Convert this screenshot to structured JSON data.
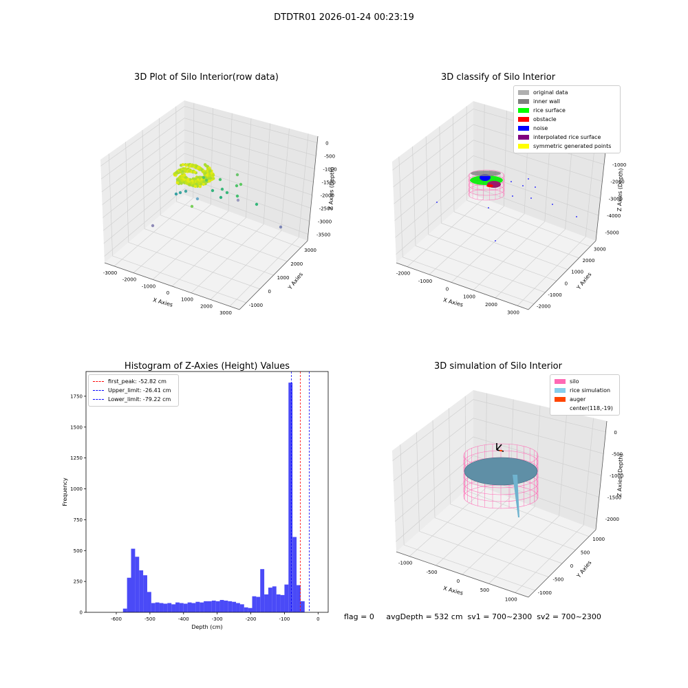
{
  "suptitle": "DTDTR01 2026-01-24 00:23:19",
  "status_line": "flag = 0     avgDepth = 532 cm  sv1 = 700~2300  sv2 = 700~2300",
  "chart_data": [
    {
      "type": "scatter",
      "projection": "3d",
      "title": "3D Plot of Silo Interior(row data)",
      "xlabel": "X Axies",
      "ylabel": "Y Axies",
      "zlabel": "Z Axies (Depth)",
      "xticks": [
        -3000,
        -2000,
        -1000,
        0,
        1000,
        2000,
        3000
      ],
      "yticks": [
        -1000,
        0,
        1000,
        2000,
        3000
      ],
      "zticks": [
        0,
        -500,
        -1000,
        -1500,
        -2000,
        -2500,
        -3000,
        -3500
      ],
      "grid": true,
      "colormap": "viridis"
    },
    {
      "type": "scatter",
      "projection": "3d",
      "title": "3D classify of Silo Interior",
      "xlabel": "X Axies",
      "ylabel": "Y Axies",
      "zlabel": "Z Axies (Depth)",
      "xticks": [
        -2000,
        -1000,
        0,
        1000,
        2000,
        3000
      ],
      "yticks": [
        -2000,
        -1000,
        0,
        1000,
        2000,
        3000
      ],
      "zticks": [
        0,
        -1000,
        -2000,
        -3000,
        -4000,
        -5000
      ],
      "grid": true,
      "legend_position": "top-right",
      "legend": [
        {
          "label": "original data",
          "color": "#b0b0b0"
        },
        {
          "label": "inner wall",
          "color": "#808080"
        },
        {
          "label": "rice surface",
          "color": "#00ff00"
        },
        {
          "label": "obstacle",
          "color": "#ff0000"
        },
        {
          "label": "noise",
          "color": "#0000ff"
        },
        {
          "label": "interpolated rice surface",
          "color": "#800080"
        },
        {
          "label": "symmetric generated points",
          "color": "#ffff00"
        }
      ]
    },
    {
      "type": "bar",
      "title": "Histogram of Z-Axies (Height) Values",
      "xlabel": "Depth (cm)",
      "ylabel": "Frequency",
      "xlim": [
        -690,
        30
      ],
      "ylim": [
        0,
        1950
      ],
      "xticks": [
        -600,
        -500,
        -400,
        -300,
        -200,
        -100,
        0
      ],
      "yticks": [
        0,
        250,
        500,
        750,
        1000,
        1250,
        1500,
        1750
      ],
      "bar_color": "#4a4af7",
      "bin_width": 12,
      "bin_starts": [
        -580,
        -568,
        -556,
        -544,
        -532,
        -520,
        -508,
        -496,
        -484,
        -472,
        -460,
        -448,
        -436,
        -424,
        -412,
        -400,
        -388,
        -376,
        -364,
        -352,
        -340,
        -328,
        -316,
        -304,
        -292,
        -280,
        -268,
        -256,
        -244,
        -232,
        -220,
        -208,
        -196,
        -184,
        -172,
        -160,
        -148,
        -136,
        -124,
        -112,
        -100,
        -88,
        -76,
        -64,
        -52,
        -40,
        -28,
        -16,
        -4
      ],
      "counts": [
        30,
        280,
        515,
        450,
        340,
        300,
        165,
        75,
        80,
        75,
        70,
        75,
        65,
        80,
        75,
        70,
        80,
        75,
        85,
        80,
        90,
        90,
        95,
        90,
        100,
        95,
        90,
        85,
        75,
        65,
        40,
        35,
        130,
        125,
        350,
        145,
        200,
        210,
        145,
        140,
        225,
        1860,
        610,
        220,
        90,
        0,
        0,
        0,
        0
      ],
      "lines": [
        {
          "label": "first_peak: -52.82 cm",
          "x": -52.82,
          "color": "#ff0000",
          "style": "dashed"
        },
        {
          "label": "Upper_limit: -26.41 cm",
          "x": -26.41,
          "color": "#0000ff",
          "style": "dashed"
        },
        {
          "label": "Lower_limit: -79.22 cm",
          "x": -79.22,
          "color": "#0000ff",
          "style": "dashed"
        }
      ],
      "legend_position": "top-left",
      "grid": false
    },
    {
      "type": "surface",
      "projection": "3d",
      "title": "3D simulation of Silo Interior",
      "xlabel": "X Axies",
      "ylabel": "Y Axies",
      "zlabel": "Z Axies (Depth)",
      "xticks": [
        -1000,
        -500,
        0,
        500,
        1000
      ],
      "yticks": [
        -1000,
        -500,
        0,
        500,
        1000
      ],
      "zticks": [
        0,
        -500,
        -1000,
        -1500,
        -2000
      ],
      "grid": true,
      "legend_position": "top-right",
      "legend": [
        {
          "label": "silo",
          "color": "#ff69b4"
        },
        {
          "label": "rice simulation",
          "color": "#87ceeb"
        },
        {
          "label": "auger",
          "color": "#ff4500"
        },
        {
          "label": "center(118,-19)",
          "color": ""
        }
      ]
    }
  ]
}
